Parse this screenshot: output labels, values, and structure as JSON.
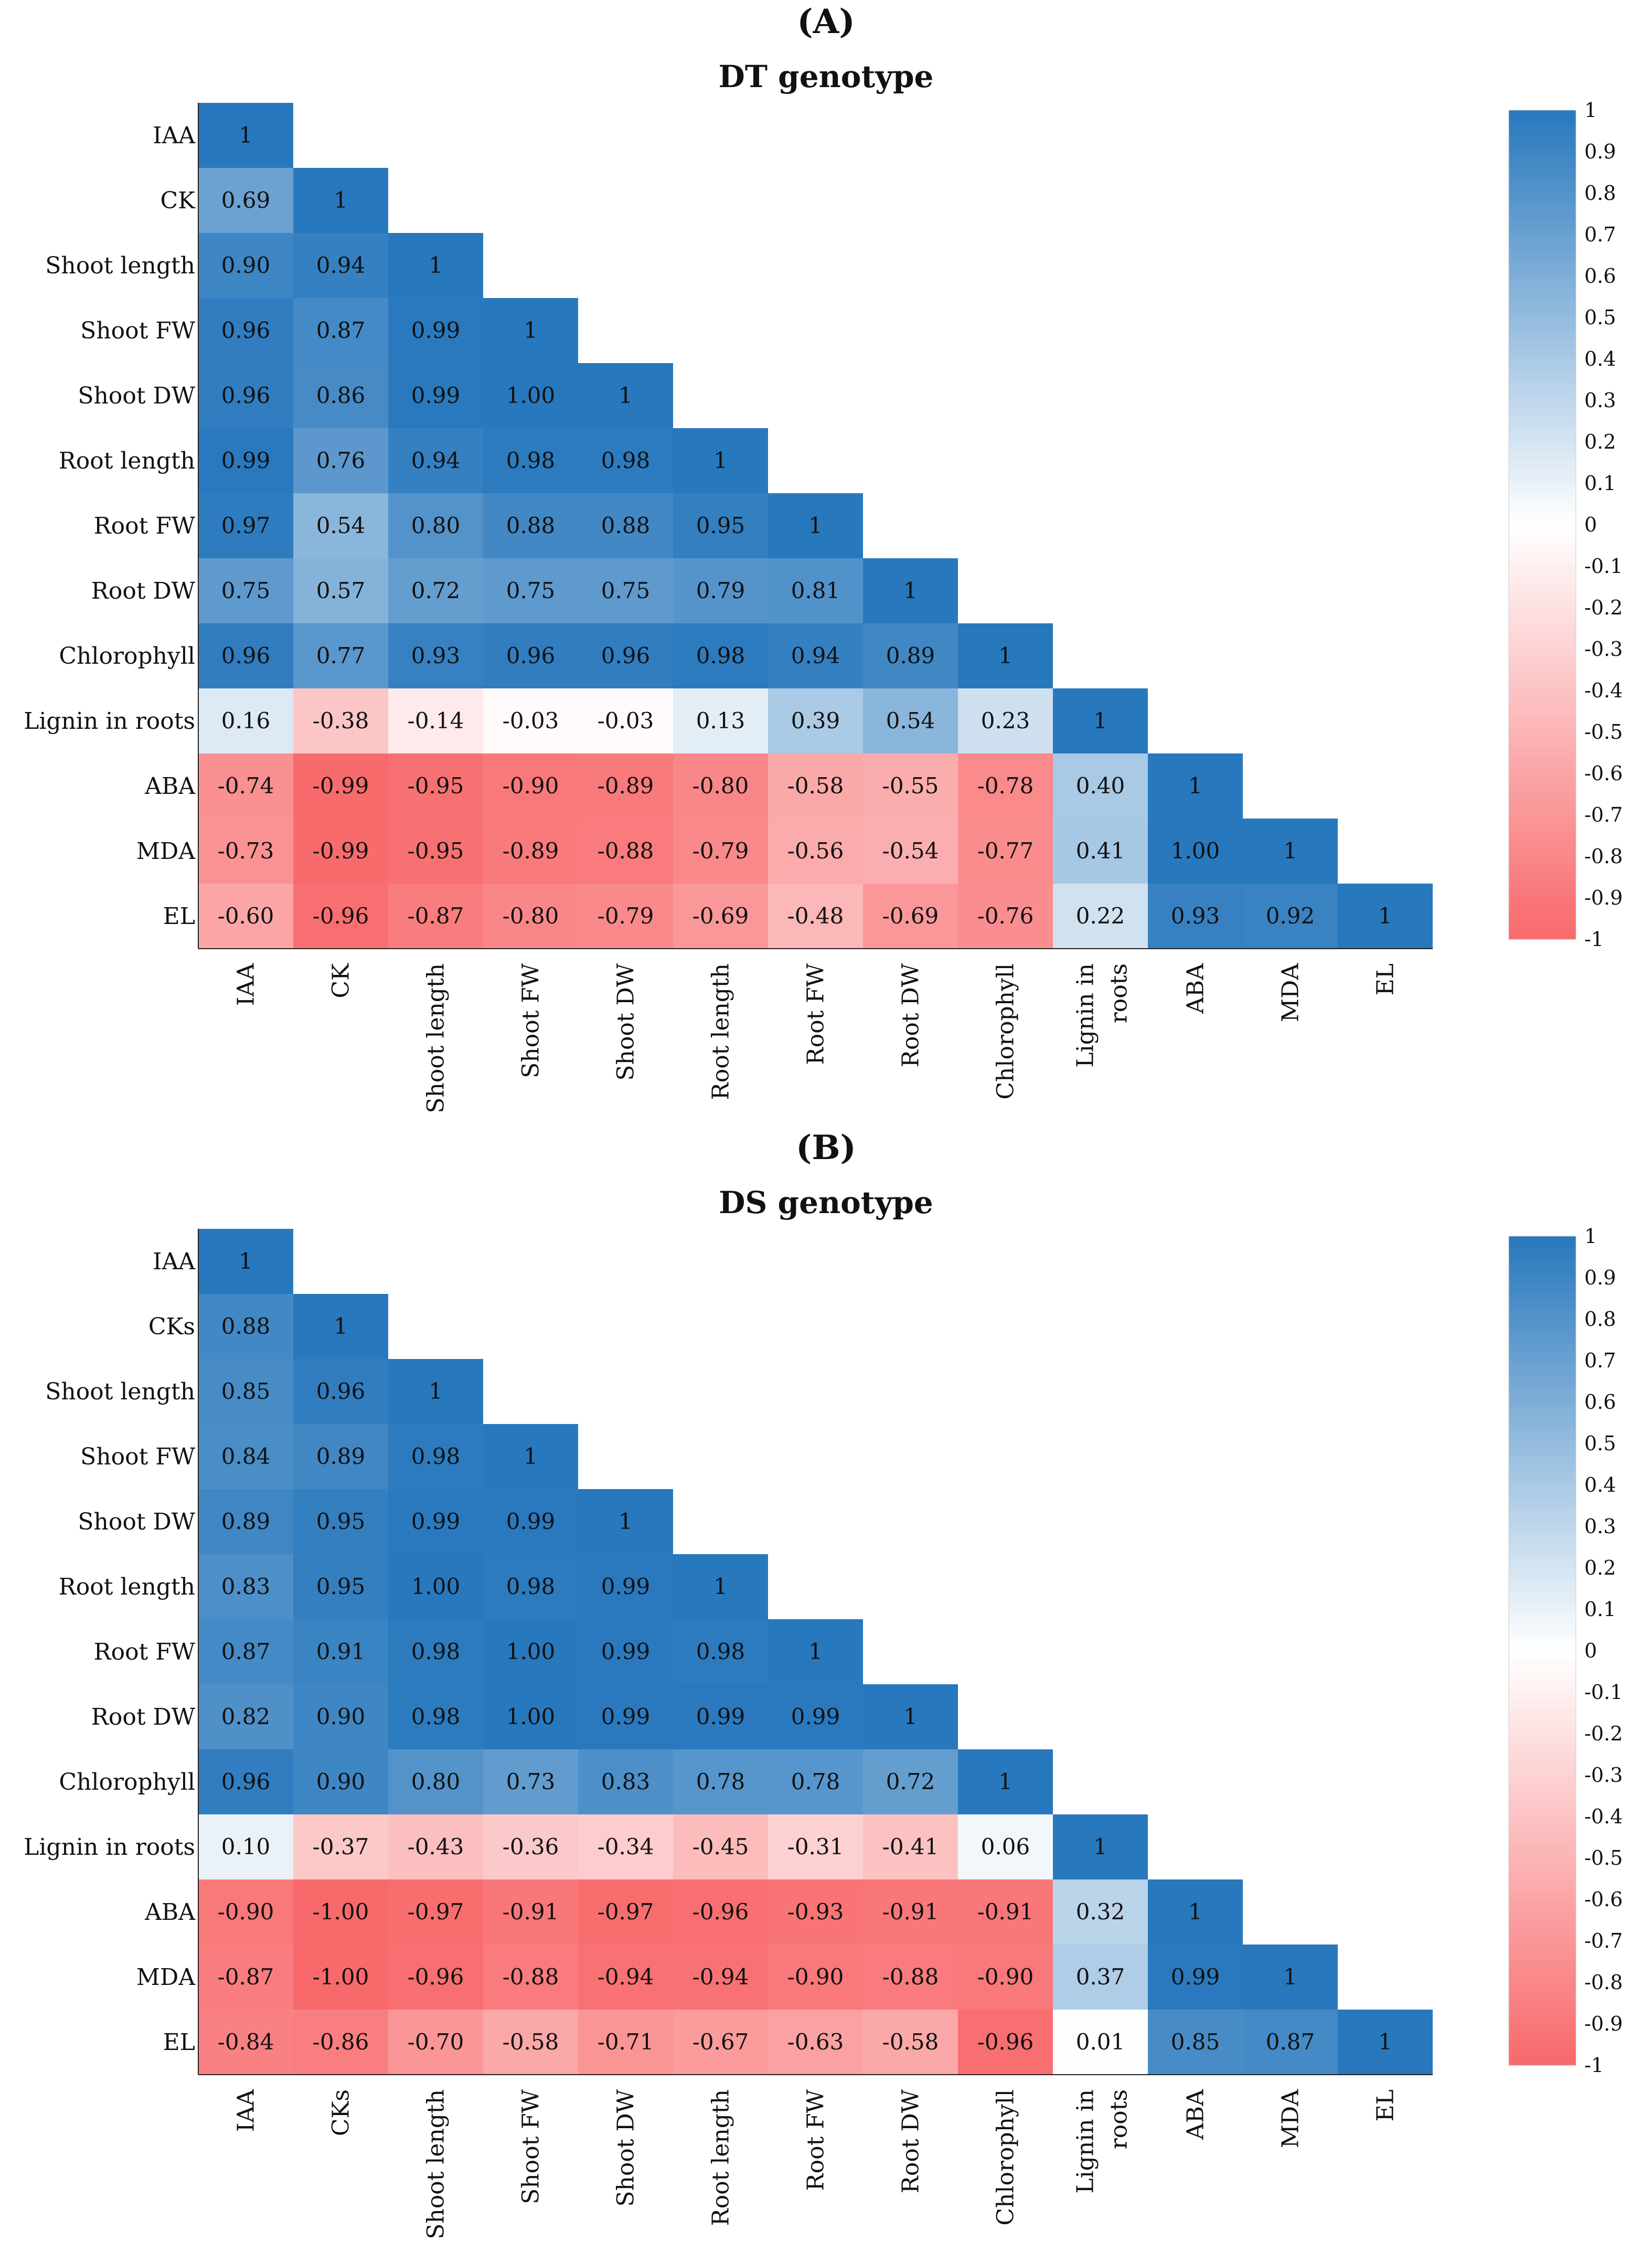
{
  "chart_data": [
    {
      "type": "heatmap",
      "panel_label": "(A)",
      "title": "DT genotype",
      "labels": [
        "IAA",
        "CK",
        "Shoot length",
        "Shoot FW",
        "Shoot DW",
        "Root length",
        "Root FW",
        "Root DW",
        "Chlorophyll",
        "Lignin in roots",
        "ABA",
        "MDA",
        "EL"
      ],
      "x_labels": [
        "IAA",
        "CK",
        "Shoot length",
        "Shoot FW",
        "Shoot DW",
        "Root length",
        "Root FW",
        "Root DW",
        "Chlorophyll",
        "Lignin in|roots",
        "ABA",
        "MDA",
        "EL"
      ],
      "matrix": [
        [
          "1"
        ],
        [
          "0.69",
          "1"
        ],
        [
          "0.90",
          "0.94",
          "1"
        ],
        [
          "0.96",
          "0.87",
          "0.99",
          "1"
        ],
        [
          "0.96",
          "0.86",
          "0.99",
          "1.00",
          "1"
        ],
        [
          "0.99",
          "0.76",
          "0.94",
          "0.98",
          "0.98",
          "1"
        ],
        [
          "0.97",
          "0.54",
          "0.80",
          "0.88",
          "0.88",
          "0.95",
          "1"
        ],
        [
          "0.75",
          "0.57",
          "0.72",
          "0.75",
          "0.75",
          "0.79",
          "0.81",
          "1"
        ],
        [
          "0.96",
          "0.77",
          "0.93",
          "0.96",
          "0.96",
          "0.98",
          "0.94",
          "0.89",
          "1"
        ],
        [
          "0.16",
          "-0.38",
          "-0.14",
          "-0.03",
          "-0.03",
          "0.13",
          "0.39",
          "0.54",
          "0.23",
          "1"
        ],
        [
          "-0.74",
          "-0.99",
          "-0.95",
          "-0.90",
          "-0.89",
          "-0.80",
          "-0.58",
          "-0.55",
          "-0.78",
          "0.40",
          "1"
        ],
        [
          "-0.73",
          "-0.99",
          "-0.95",
          "-0.89",
          "-0.88",
          "-0.79",
          "-0.56",
          "-0.54",
          "-0.77",
          "0.41",
          "1.00",
          "1"
        ],
        [
          "-0.60",
          "-0.96",
          "-0.87",
          "-0.80",
          "-0.79",
          "-0.69",
          "-0.48",
          "-0.69",
          "-0.76",
          "0.22",
          "0.93",
          "0.92",
          "1"
        ]
      ],
      "colorbar_ticks": [
        "1",
        "0.9",
        "0.8",
        "0.7",
        "0.6",
        "0.5",
        "0.4",
        "0.3",
        "0.2",
        "0.1",
        "0",
        "-0.1",
        "-0.2",
        "-0.3",
        "-0.4",
        "-0.5",
        "-0.6",
        "-0.7",
        "-0.8",
        "-0.9",
        "-1"
      ],
      "colorbar_range": [
        -1,
        1
      ]
    },
    {
      "type": "heatmap",
      "panel_label": "(B)",
      "title": "DS genotype",
      "labels": [
        "IAA",
        "CKs",
        "Shoot length",
        "Shoot FW",
        "Shoot DW",
        "Root length",
        "Root FW",
        "Root DW",
        "Chlorophyll",
        "Lignin in roots",
        "ABA",
        "MDA",
        "EL"
      ],
      "x_labels": [
        "IAA",
        "CKs",
        "Shoot length",
        "Shoot FW",
        "Shoot DW",
        "Root length",
        "Root FW",
        "Root DW",
        "Chlorophyll",
        "Lignin in|roots",
        "ABA",
        "MDA",
        "EL"
      ],
      "matrix": [
        [
          "1"
        ],
        [
          "0.88",
          "1"
        ],
        [
          "0.85",
          "0.96",
          "1"
        ],
        [
          "0.84",
          "0.89",
          "0.98",
          "1"
        ],
        [
          "0.89",
          "0.95",
          "0.99",
          "0.99",
          "1"
        ],
        [
          "0.83",
          "0.95",
          "1.00",
          "0.98",
          "0.99",
          "1"
        ],
        [
          "0.87",
          "0.91",
          "0.98",
          "1.00",
          "0.99",
          "0.98",
          "1"
        ],
        [
          "0.82",
          "0.90",
          "0.98",
          "1.00",
          "0.99",
          "0.99",
          "0.99",
          "1"
        ],
        [
          "0.96",
          "0.90",
          "0.80",
          "0.73",
          "0.83",
          "0.78",
          "0.78",
          "0.72",
          "1"
        ],
        [
          "0.10",
          "-0.37",
          "-0.43",
          "-0.36",
          "-0.34",
          "-0.45",
          "-0.31",
          "-0.41",
          "0.06",
          "1"
        ],
        [
          "-0.90",
          "-1.00",
          "-0.97",
          "-0.91",
          "-0.97",
          "-0.96",
          "-0.93",
          "-0.91",
          "-0.91",
          "0.32",
          "1"
        ],
        [
          "-0.87",
          "-1.00",
          "-0.96",
          "-0.88",
          "-0.94",
          "-0.94",
          "-0.90",
          "-0.88",
          "-0.90",
          "0.37",
          "0.99",
          "1"
        ],
        [
          "-0.84",
          "-0.86",
          "-0.70",
          "-0.58",
          "-0.71",
          "-0.67",
          "-0.63",
          "-0.58",
          "-0.96",
          "0.01",
          "0.85",
          "0.87",
          "1"
        ]
      ],
      "colorbar_ticks": [
        "1",
        "0.9",
        "0.8",
        "0.7",
        "0.6",
        "0.5",
        "0.4",
        "0.3",
        "0.2",
        "0.1",
        "0",
        "-0.1",
        "-0.2",
        "-0.3",
        "-0.4",
        "-0.5",
        "-0.6",
        "-0.7",
        "-0.8",
        "-0.9",
        "-1"
      ],
      "colorbar_range": [
        -1,
        1
      ]
    }
  ],
  "colors": {
    "positive_max": "#2878bd",
    "negative_max": "#f8696b",
    "neutral": "#ffffff"
  }
}
